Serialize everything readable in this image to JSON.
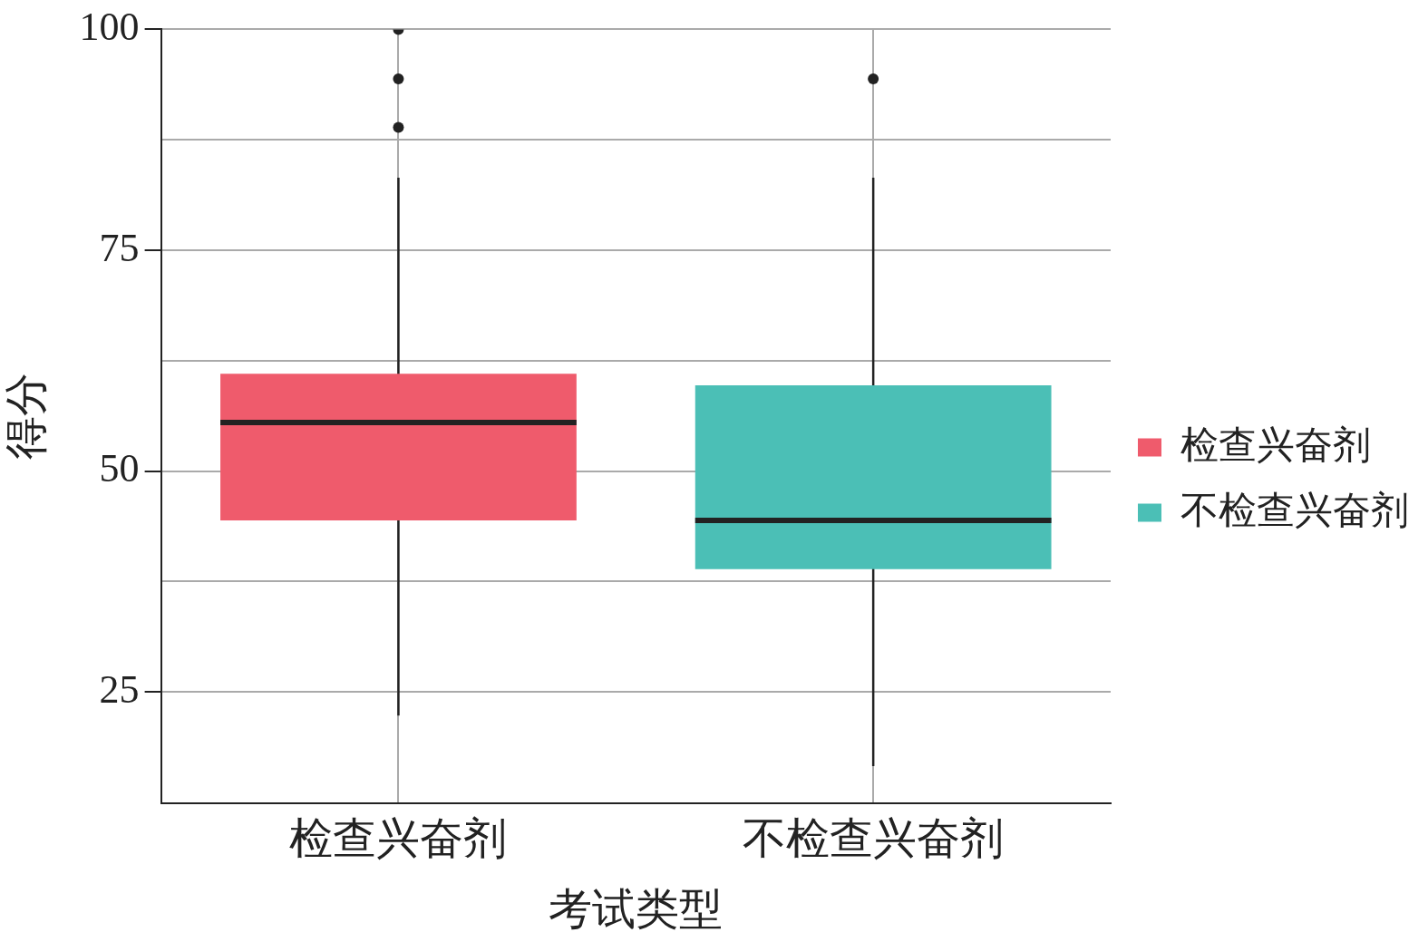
{
  "chart_data": {
    "type": "box",
    "xlabel": "考试类型",
    "ylabel": "得分",
    "categories": [
      "检查兴奋剂",
      "不检查兴奋剂"
    ],
    "series": [
      {
        "name": "检查兴奋剂",
        "color": "#ef5b6c",
        "boxes": [
          {
            "low": 22.3,
            "q1": 44.4,
            "median": 55.5,
            "q3": 61.0,
            "high": 83.2,
            "outliers": [
              100,
              94.4,
              88.9
            ]
          },
          null
        ]
      },
      {
        "name": "不检查兴奋剂",
        "color": "#4bbfb6",
        "boxes": [
          null,
          {
            "low": 16.6,
            "q1": 38.9,
            "median": 44.4,
            "q3": 59.7,
            "high": 83.2,
            "outliers": [
              94.4
            ]
          }
        ]
      }
    ],
    "ylim": [
      12.4,
      100
    ],
    "yticks": [
      25,
      {
        "value": 37.5,
        "label": null
      },
      50,
      {
        "value": 62.5,
        "label": null
      },
      75,
      {
        "value": 87.5,
        "label": null
      },
      100
    ],
    "grid": true,
    "legend": "right"
  }
}
